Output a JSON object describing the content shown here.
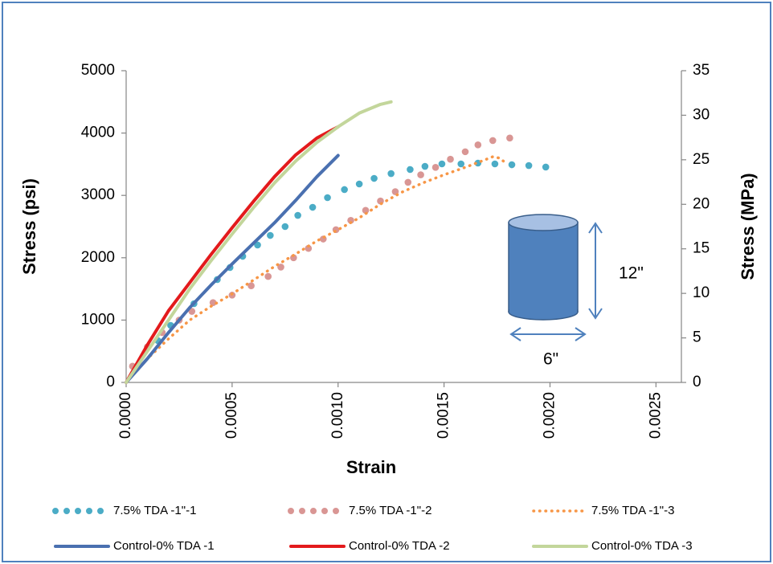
{
  "chart_data": {
    "type": "line",
    "xlabel": "Strain",
    "ylabel": "Stress (psi)",
    "y2label": "Stress (MPa)",
    "xlim": [
      0,
      0.00262
    ],
    "ylim": [
      0,
      5000
    ],
    "y2lim": [
      0,
      35
    ],
    "xticks": [
      {
        "value": 0,
        "label": "0.0000"
      },
      {
        "value": 0.0005,
        "label": "0.0005"
      },
      {
        "value": 0.001,
        "label": "0.0010"
      },
      {
        "value": 0.0015,
        "label": "0.0015"
      },
      {
        "value": 0.002,
        "label": "0.0020"
      },
      {
        "value": 0.0025,
        "label": "0.0025"
      }
    ],
    "yticks": [
      0,
      1000,
      2000,
      3000,
      4000,
      5000
    ],
    "y2ticks": [
      0,
      5,
      10,
      15,
      20,
      25,
      30,
      35
    ],
    "annotations": [
      "12\"",
      "6\""
    ],
    "series": [
      {
        "name": "7.5% TDA -1\"-1",
        "color": "#4bacc6",
        "style": "dots",
        "x": [
          4.9e-05,
          0.00015,
          0.00021,
          0.00032,
          0.00043,
          0.00049,
          0.00055,
          0.00062,
          0.00068,
          0.00075,
          0.00081,
          0.00088,
          0.00095,
          0.00103,
          0.0011,
          0.00117,
          0.00125,
          0.00134,
          0.00141,
          0.00149,
          0.00158,
          0.00166,
          0.00174,
          0.00182,
          0.0019,
          0.00198
        ],
        "values": [
          232,
          670,
          915,
          1263,
          1650,
          1843,
          2023,
          2204,
          2358,
          2500,
          2680,
          2809,
          2964,
          3093,
          3183,
          3273,
          3350,
          3415,
          3466,
          3505,
          3505,
          3518,
          3505,
          3492,
          3479,
          3454
        ]
      },
      {
        "name": "7.5% TDA -1\"-2",
        "color": "#d99694",
        "style": "dots",
        "x": [
          3e-05,
          0.0001,
          0.00017,
          0.00025,
          0.00031,
          0.00041,
          0.0005,
          0.00059,
          0.00067,
          0.00073,
          0.00079,
          0.00086,
          0.00093,
          0.00099,
          0.00106,
          0.00113,
          0.0012,
          0.00127,
          0.00133,
          0.00139,
          0.00146,
          0.00153,
          0.0016,
          0.00166,
          0.00173,
          0.00181
        ],
        "values": [
          260,
          570,
          800,
          1000,
          1140,
          1280,
          1400,
          1550,
          1700,
          1850,
          2000,
          2150,
          2300,
          2450,
          2600,
          2760,
          2910,
          3060,
          3210,
          3330,
          3450,
          3580,
          3700,
          3810,
          3880,
          3920
        ]
      },
      {
        "name": "7.5% TDA -1\"-3",
        "color": "#f79646",
        "style": "dotted",
        "x": [
          0,
          0.0001,
          0.0002,
          0.0003,
          0.0004,
          0.0005,
          0.0006,
          0.0007,
          0.0008,
          0.0009,
          0.001,
          0.0011,
          0.0012,
          0.0013,
          0.0014,
          0.0015,
          0.0016,
          0.0017,
          0.00173,
          0.00176,
          0.0018
        ],
        "values": [
          0,
          380,
          700,
          1000,
          1220,
          1420,
          1640,
          1860,
          2060,
          2270,
          2450,
          2640,
          2860,
          3050,
          3200,
          3330,
          3450,
          3580,
          3620,
          3600,
          3500
        ]
      },
      {
        "name": "Control-0% TDA -1",
        "color": "#4a70b0",
        "style": "solid",
        "x": [
          0,
          0.0001,
          0.0002,
          0.0003,
          0.0004,
          0.0005,
          0.0006,
          0.0007,
          0.0008,
          0.0009,
          0.001
        ],
        "values": [
          0,
          380,
          800,
          1200,
          1560,
          1900,
          2230,
          2560,
          2920,
          3300,
          3640
        ]
      },
      {
        "name": "Control-0% TDA -2",
        "color": "#e31a1c",
        "style": "solid",
        "x": [
          0,
          0.0001,
          0.0002,
          0.0003,
          0.0004,
          0.0005,
          0.0006,
          0.0007,
          0.0008,
          0.0009,
          0.001
        ],
        "values": [
          0,
          600,
          1150,
          1600,
          2050,
          2480,
          2900,
          3300,
          3650,
          3920,
          4100
        ]
      },
      {
        "name": "Control-0% TDA -3",
        "color": "#c3d69b",
        "style": "solid",
        "x": [
          0,
          0.0001,
          0.0002,
          0.0003,
          0.0004,
          0.0005,
          0.0006,
          0.0007,
          0.0008,
          0.0009,
          0.001,
          0.0011,
          0.0012,
          0.00125
        ],
        "values": [
          0,
          500,
          1000,
          1500,
          1950,
          2380,
          2800,
          3200,
          3550,
          3850,
          4100,
          4320,
          4460,
          4500
        ]
      }
    ]
  }
}
